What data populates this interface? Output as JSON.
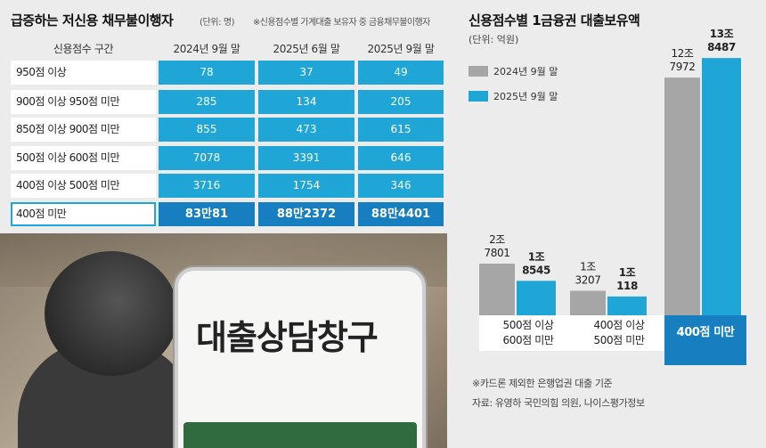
{
  "left": {
    "title": "급증하는 저신용 채무불이행자",
    "unit": "(단위: 명)",
    "note": "※신용점수별 가계대출 보유자 중 금융채무불이행자",
    "headers": [
      "신용점수 구간",
      "2024년 9월 말",
      "2025년 6월 말",
      "2025년 9월 말"
    ],
    "rows": [
      {
        "label": "950점 이상",
        "values": [
          "78",
          "37",
          "49"
        ]
      },
      {
        "label": "900점 이상 950점 미만",
        "values": [
          "285",
          "134",
          "205"
        ]
      },
      {
        "label": "850점 이상 900점 미만",
        "values": [
          "855",
          "473",
          "615"
        ]
      },
      {
        "label": "500점 이상 600점 미만",
        "values": [
          "7078",
          "3391",
          "646"
        ]
      },
      {
        "label": "400점 이상 500점 미만",
        "values": [
          "3716",
          "1754",
          "346"
        ]
      },
      {
        "label": "400점 미만",
        "values": [
          "83만81",
          "88만2372",
          "88만4401"
        ]
      }
    ]
  },
  "photo": {
    "sign_text": "대출상담창구"
  },
  "right": {
    "title": "신용점수별 1금융권 대출보유액",
    "unit": "(단위: 억원)",
    "footnote": "※카드론 제외한 은행업권 대출 기준",
    "source": "자료: 유영하 국민의힘 의원, 나이스평가정보"
  },
  "colors": {
    "blue": "#1fa6d6",
    "dark_blue": "#177fbf",
    "gray": "#a6a6a6"
  },
  "chart_data": {
    "type": "bar",
    "title": "신용점수별 1금융권 대출보유액",
    "unit": "(단위: 억원)",
    "categories": [
      "500점 이상 600점 미만",
      "400점 이상 500점 미만",
      "400점 미만"
    ],
    "category_lines": [
      [
        "500점 이상",
        "600점 미만"
      ],
      [
        "400점 이상",
        "500점 미만"
      ],
      [
        "400점 미만"
      ]
    ],
    "series": [
      {
        "name": "2024년 9월 말",
        "color": "#a6a6a6",
        "values": [
          27801,
          13207,
          127972
        ],
        "labels": [
          [
            "2조",
            "7801"
          ],
          [
            "1조",
            "3207"
          ],
          [
            "12조",
            "7972"
          ]
        ]
      },
      {
        "name": "2025년 9월 말",
        "color": "#1fa6d6",
        "values": [
          18545,
          10118,
          138487
        ],
        "labels": [
          [
            "1조",
            "8545"
          ],
          [
            "1조",
            "118"
          ],
          [
            "13조",
            "8487"
          ]
        ]
      }
    ],
    "legend": "top-left",
    "grid": false
  }
}
